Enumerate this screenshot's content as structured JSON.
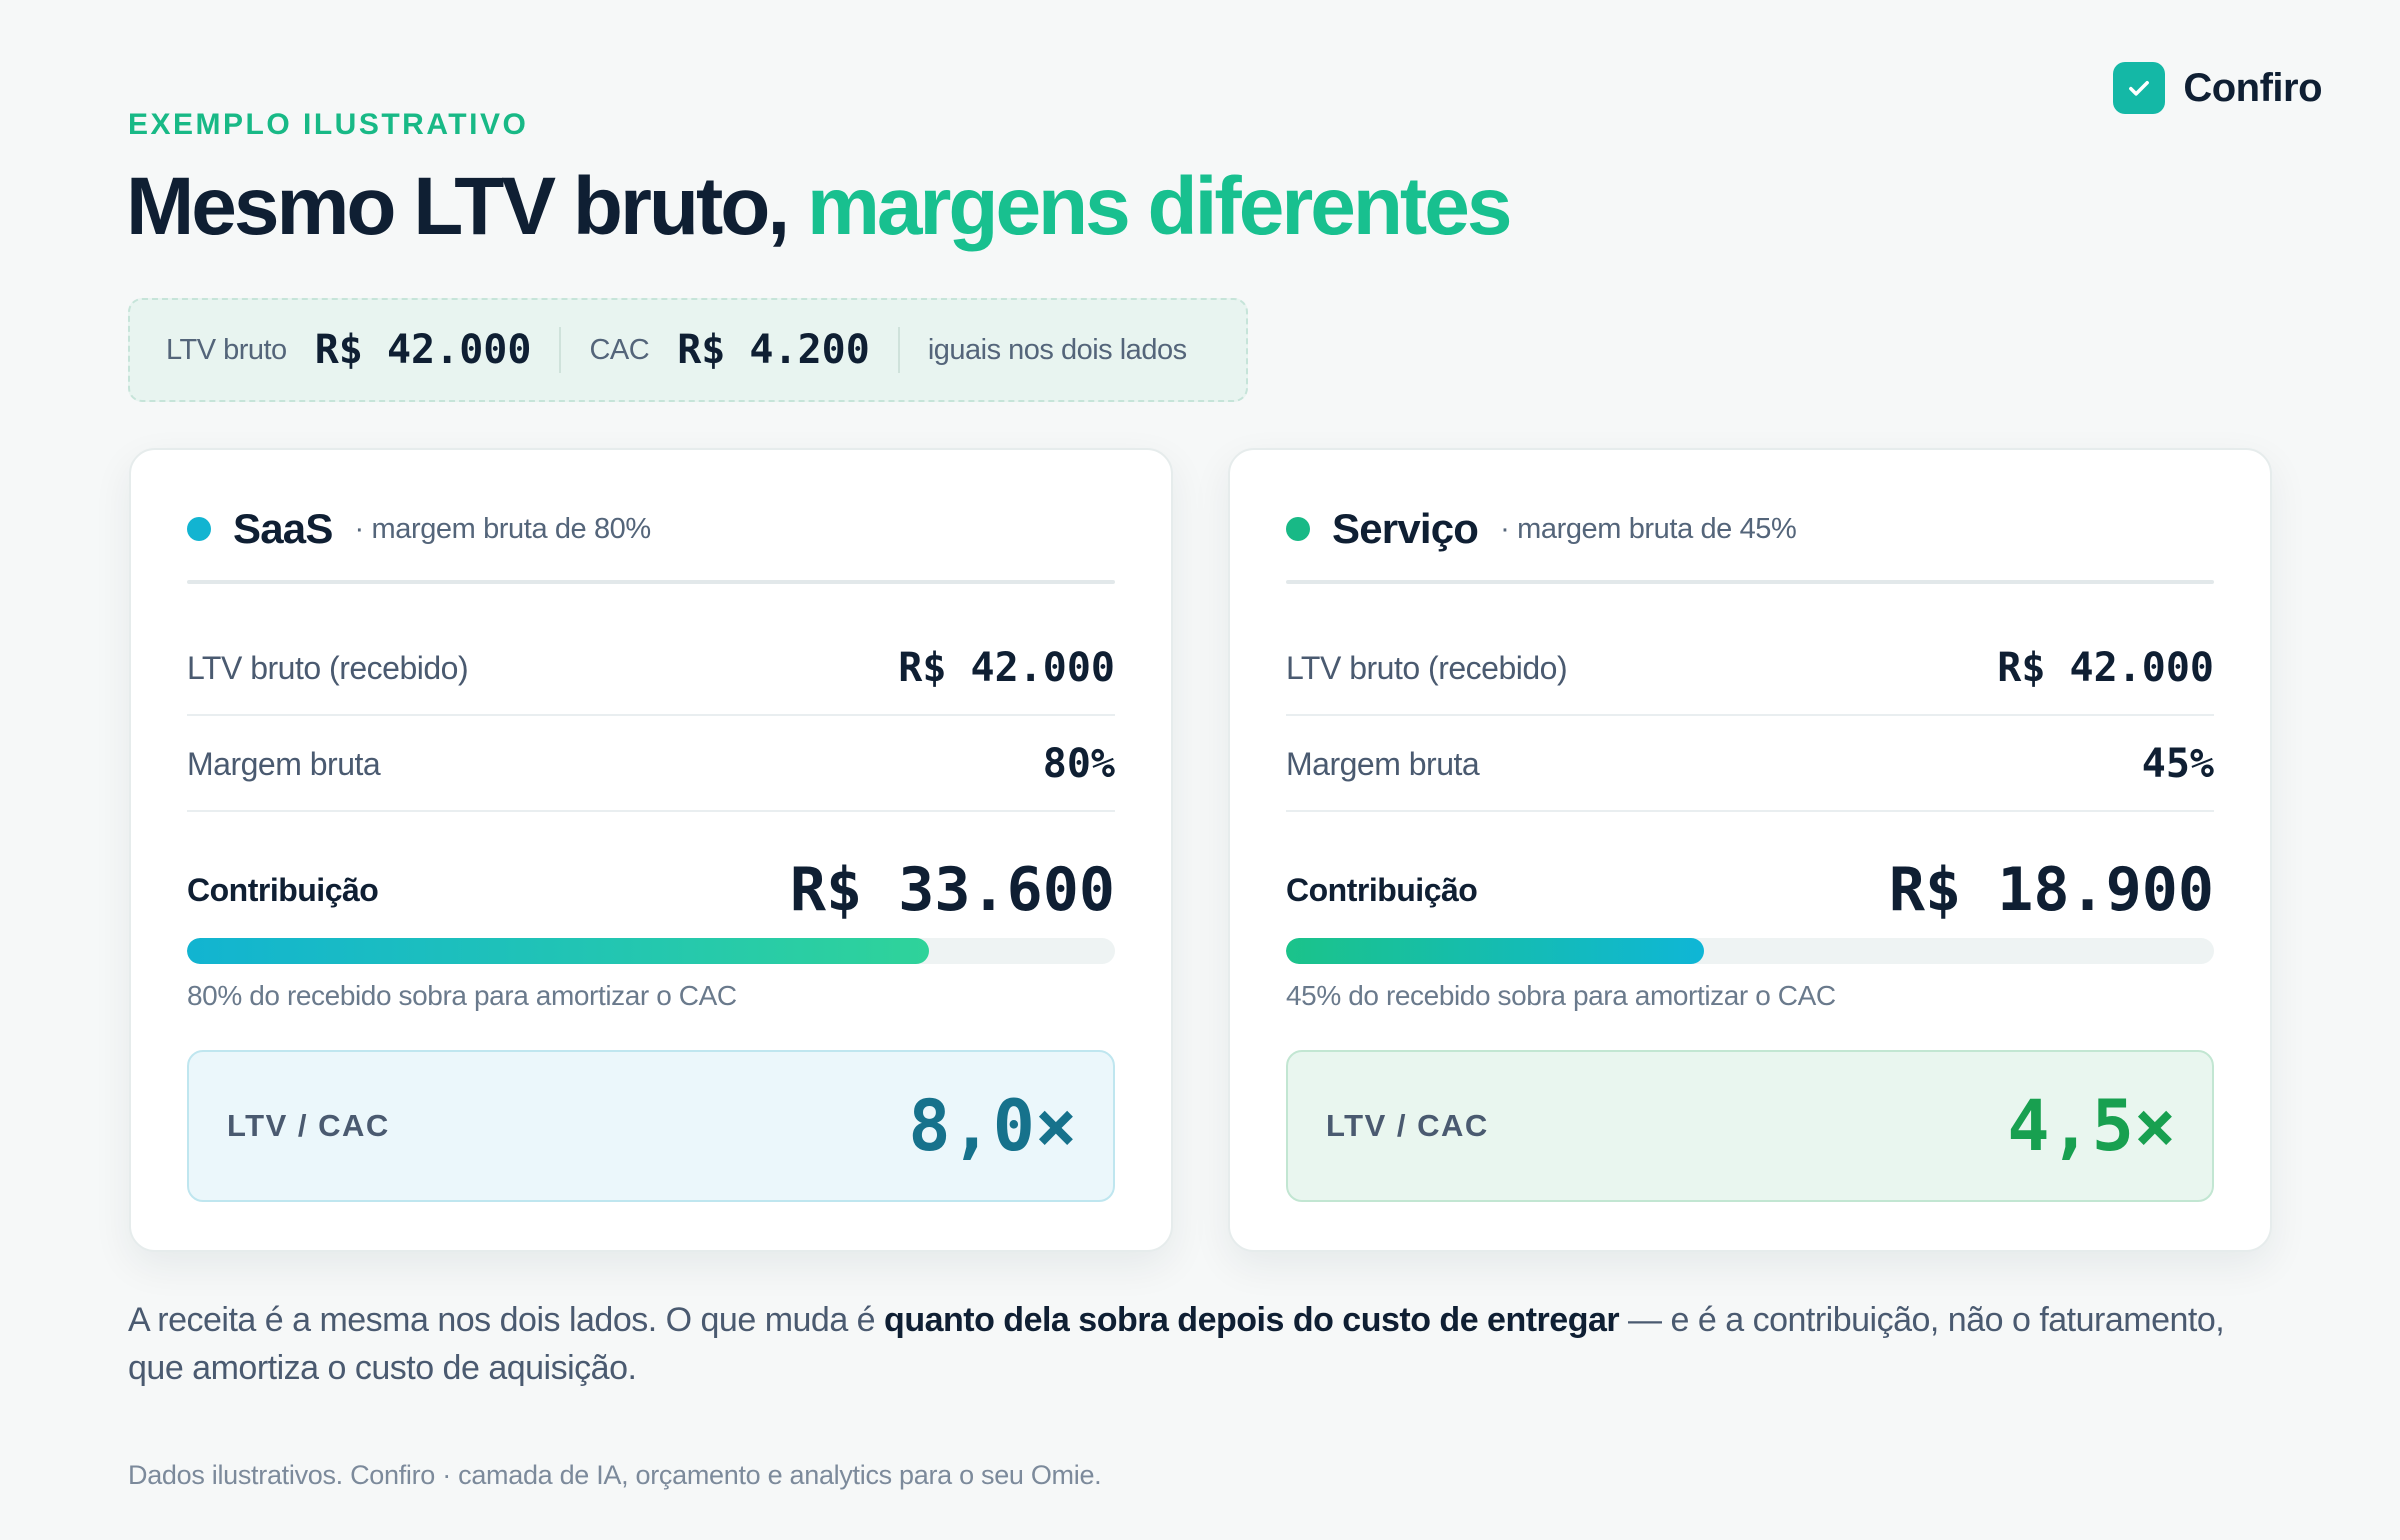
{
  "brand": {
    "name": "Confiro",
    "icon": "check-icon",
    "accent": "#14b8a6"
  },
  "header": {
    "eyebrow": "EXEMPLO ILUSTRATIVO",
    "title_main": "Mesmo LTV bruto,",
    "title_accent": "margens diferentes",
    "accent_color": "#18c08f"
  },
  "summary": {
    "ltv_label": "LTV bruto",
    "ltv_value": "R$ 42.000",
    "cac_label": "CAC",
    "cac_value": "R$ 4.200",
    "note": "iguais nos dois lados"
  },
  "cards": [
    {
      "title": "SaaS",
      "subtitle": "· margem bruta de 80%",
      "dot_color": "#12b4d1",
      "ltv_label": "LTV bruto (recebido)",
      "ltv_value": "R$ 42.000",
      "margin_label": "Margem bruta",
      "margin_value": "80%",
      "contrib_label": "Contribuição",
      "contrib_value": "R$ 33.600",
      "contrib_fraction": 0.8,
      "caption": "80% do recebido sobra para amortizar o CAC",
      "ratio_label": "LTV / CAC",
      "ratio_value": "8,0×"
    },
    {
      "title": "Serviço",
      "subtitle": "· margem bruta de 45%",
      "dot_color": "#18b986",
      "ltv_label": "LTV bruto (recebido)",
      "ltv_value": "R$ 42.000",
      "margin_label": "Margem bruta",
      "margin_value": "45%",
      "contrib_label": "Contribuição",
      "contrib_value": "R$ 18.900",
      "contrib_fraction": 0.45,
      "caption": "45% do recebido sobra para amortizar o CAC",
      "ratio_label": "LTV / CAC",
      "ratio_value": "4,5×"
    }
  ],
  "body": {
    "part1": "A receita é a mesma nos dois lados. O que muda é ",
    "bold": "quanto dela sobra depois do custo de entregar",
    "part2": " — e é a contribuição, não o faturamento, que amortiza o custo de aquisição."
  },
  "footer": "Dados ilustrativos. Confiro · camada de IA, orçamento e analytics para o seu Omie."
}
